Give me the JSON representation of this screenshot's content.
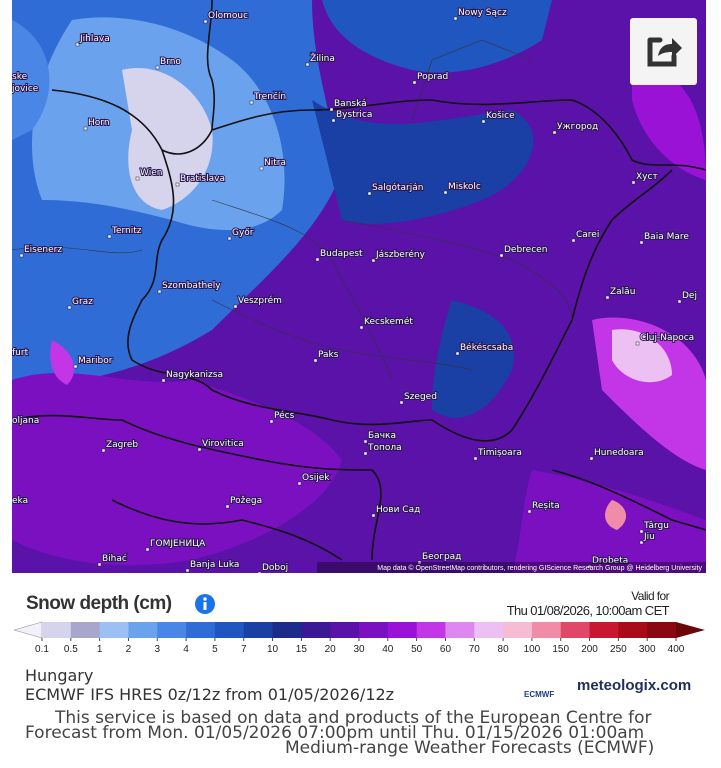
{
  "map": {
    "cities": [
      "Olomouc",
      "Nowy Sącz",
      "Jihlava",
      "Brno",
      "Žilina",
      "Poprad",
      "Trenčín",
      "Banská",
      "Bystrica",
      "Košice",
      "Ужгород",
      "Horn",
      "Wien",
      "Bratislava",
      "Nitra",
      "Salgótarján",
      "Miskolc",
      "Хуст",
      "Ternitz",
      "Győr",
      "Budapest",
      "Jászberény",
      "Debrecen",
      "Carei",
      "Baia Mare",
      "Eisenerz",
      "Szombathely",
      "Graz",
      "Veszprém",
      "Zalău",
      "Dej",
      "Kecskemét",
      "Cluj-Napoca",
      "Paks",
      "Békéscsaba",
      "Maribor",
      "Nagykanizsa",
      "Szeged",
      "Pécs",
      "Zagreb",
      "Virovitica",
      "Бачка",
      "Топола",
      "Timișoara",
      "Hunedoara",
      "Osijek",
      "Požega",
      "Нови Сад",
      "Reșita",
      "Târgu",
      "Jiu",
      "ГОМЈЕНИЦА",
      "Bihać",
      "Banja Luka",
      "Београд",
      "Doboj",
      "Drobeta",
      "ske",
      "jovice",
      "furt",
      "oljana",
      "eka"
    ],
    "attribution": "Map data © OpenStreetMap contributors, rendering GIScience Research Group @ Heidelberg University"
  },
  "legend": {
    "title": "Snow depth (cm)",
    "valid_label": "Valid for",
    "valid_time": "Thu 01/08/2026, 10:00am CET",
    "labels": [
      "0.1",
      "0.5",
      "1",
      "2",
      "3",
      "4",
      "5",
      "7",
      "10",
      "15",
      "20",
      "30",
      "40",
      "50",
      "60",
      "70",
      "80",
      "100",
      "150",
      "200",
      "250",
      "300",
      "400"
    ],
    "colors": [
      "#f2f0fa",
      "#d6d3ec",
      "#a8a6cc",
      "#9cc0f4",
      "#6aa2ee",
      "#4a86e6",
      "#2f6cd6",
      "#2056c0",
      "#1a40a6",
      "#1a2c8c",
      "#3a1896",
      "#5a12a8",
      "#7a10c0",
      "#9a12d6",
      "#c236e8",
      "#dc88f0",
      "#ecc0f2",
      "#f6bcd4",
      "#f08ca8",
      "#e04868",
      "#c81830",
      "#a80c18",
      "#8a0810",
      "#6a0808"
    ]
  },
  "footer": {
    "region": "Hungary",
    "model": "ECMWF IFS HRES 0z/12z from 01/05/2026/12z",
    "disclaimer_line1": "This service is based on data and products of the European Centre for",
    "forecast_range": "Forecast from Mon. 01/05/2026 07:00pm until Thu. 01/15/2026 01:00am",
    "disclaimer_line2": "Medium-range Weather Forecasts (ECMWF)",
    "ecmwf_logo": "ECMWF",
    "brand": "meteologix.com"
  }
}
